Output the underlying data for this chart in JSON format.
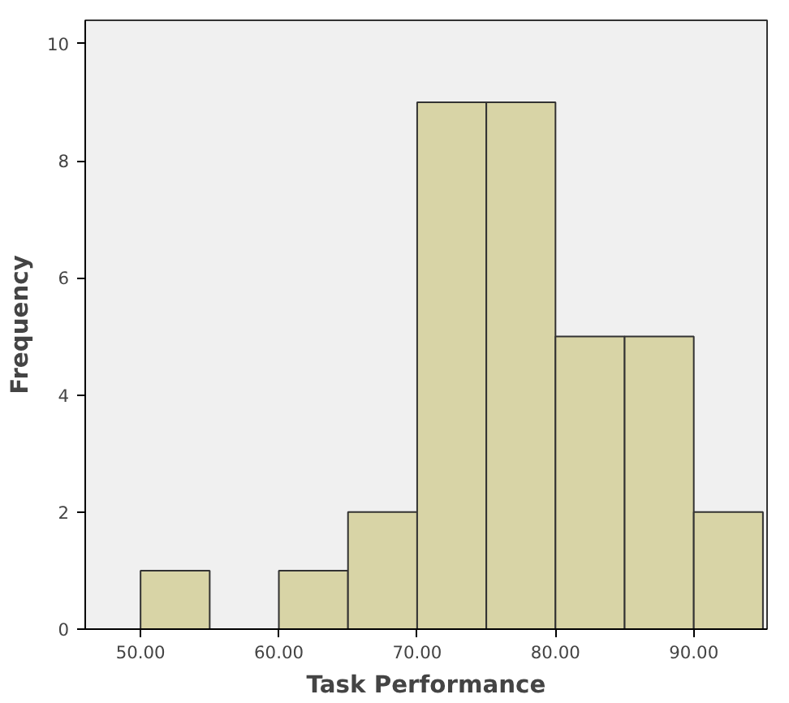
{
  "chart_data": {
    "type": "histogram",
    "xlabel": "Task Performance",
    "ylabel": "Frequency",
    "bins": [
      50,
      55,
      60,
      65,
      70,
      75,
      80,
      85,
      90,
      95
    ],
    "values": [
      1,
      0,
      1,
      2,
      9,
      9,
      5,
      5,
      2
    ],
    "color": "#d8d4a6",
    "xlim": [
      46,
      95.3
    ],
    "ylim": [
      0,
      10.4
    ],
    "xticks": [
      {
        "value": 50,
        "label": "50.00"
      },
      {
        "value": 60,
        "label": "60.00"
      },
      {
        "value": 70,
        "label": "70.00"
      },
      {
        "value": 80,
        "label": "80.00"
      },
      {
        "value": 90,
        "label": "90.00"
      }
    ],
    "yticks": [
      0,
      2,
      4,
      6,
      8,
      10
    ]
  }
}
